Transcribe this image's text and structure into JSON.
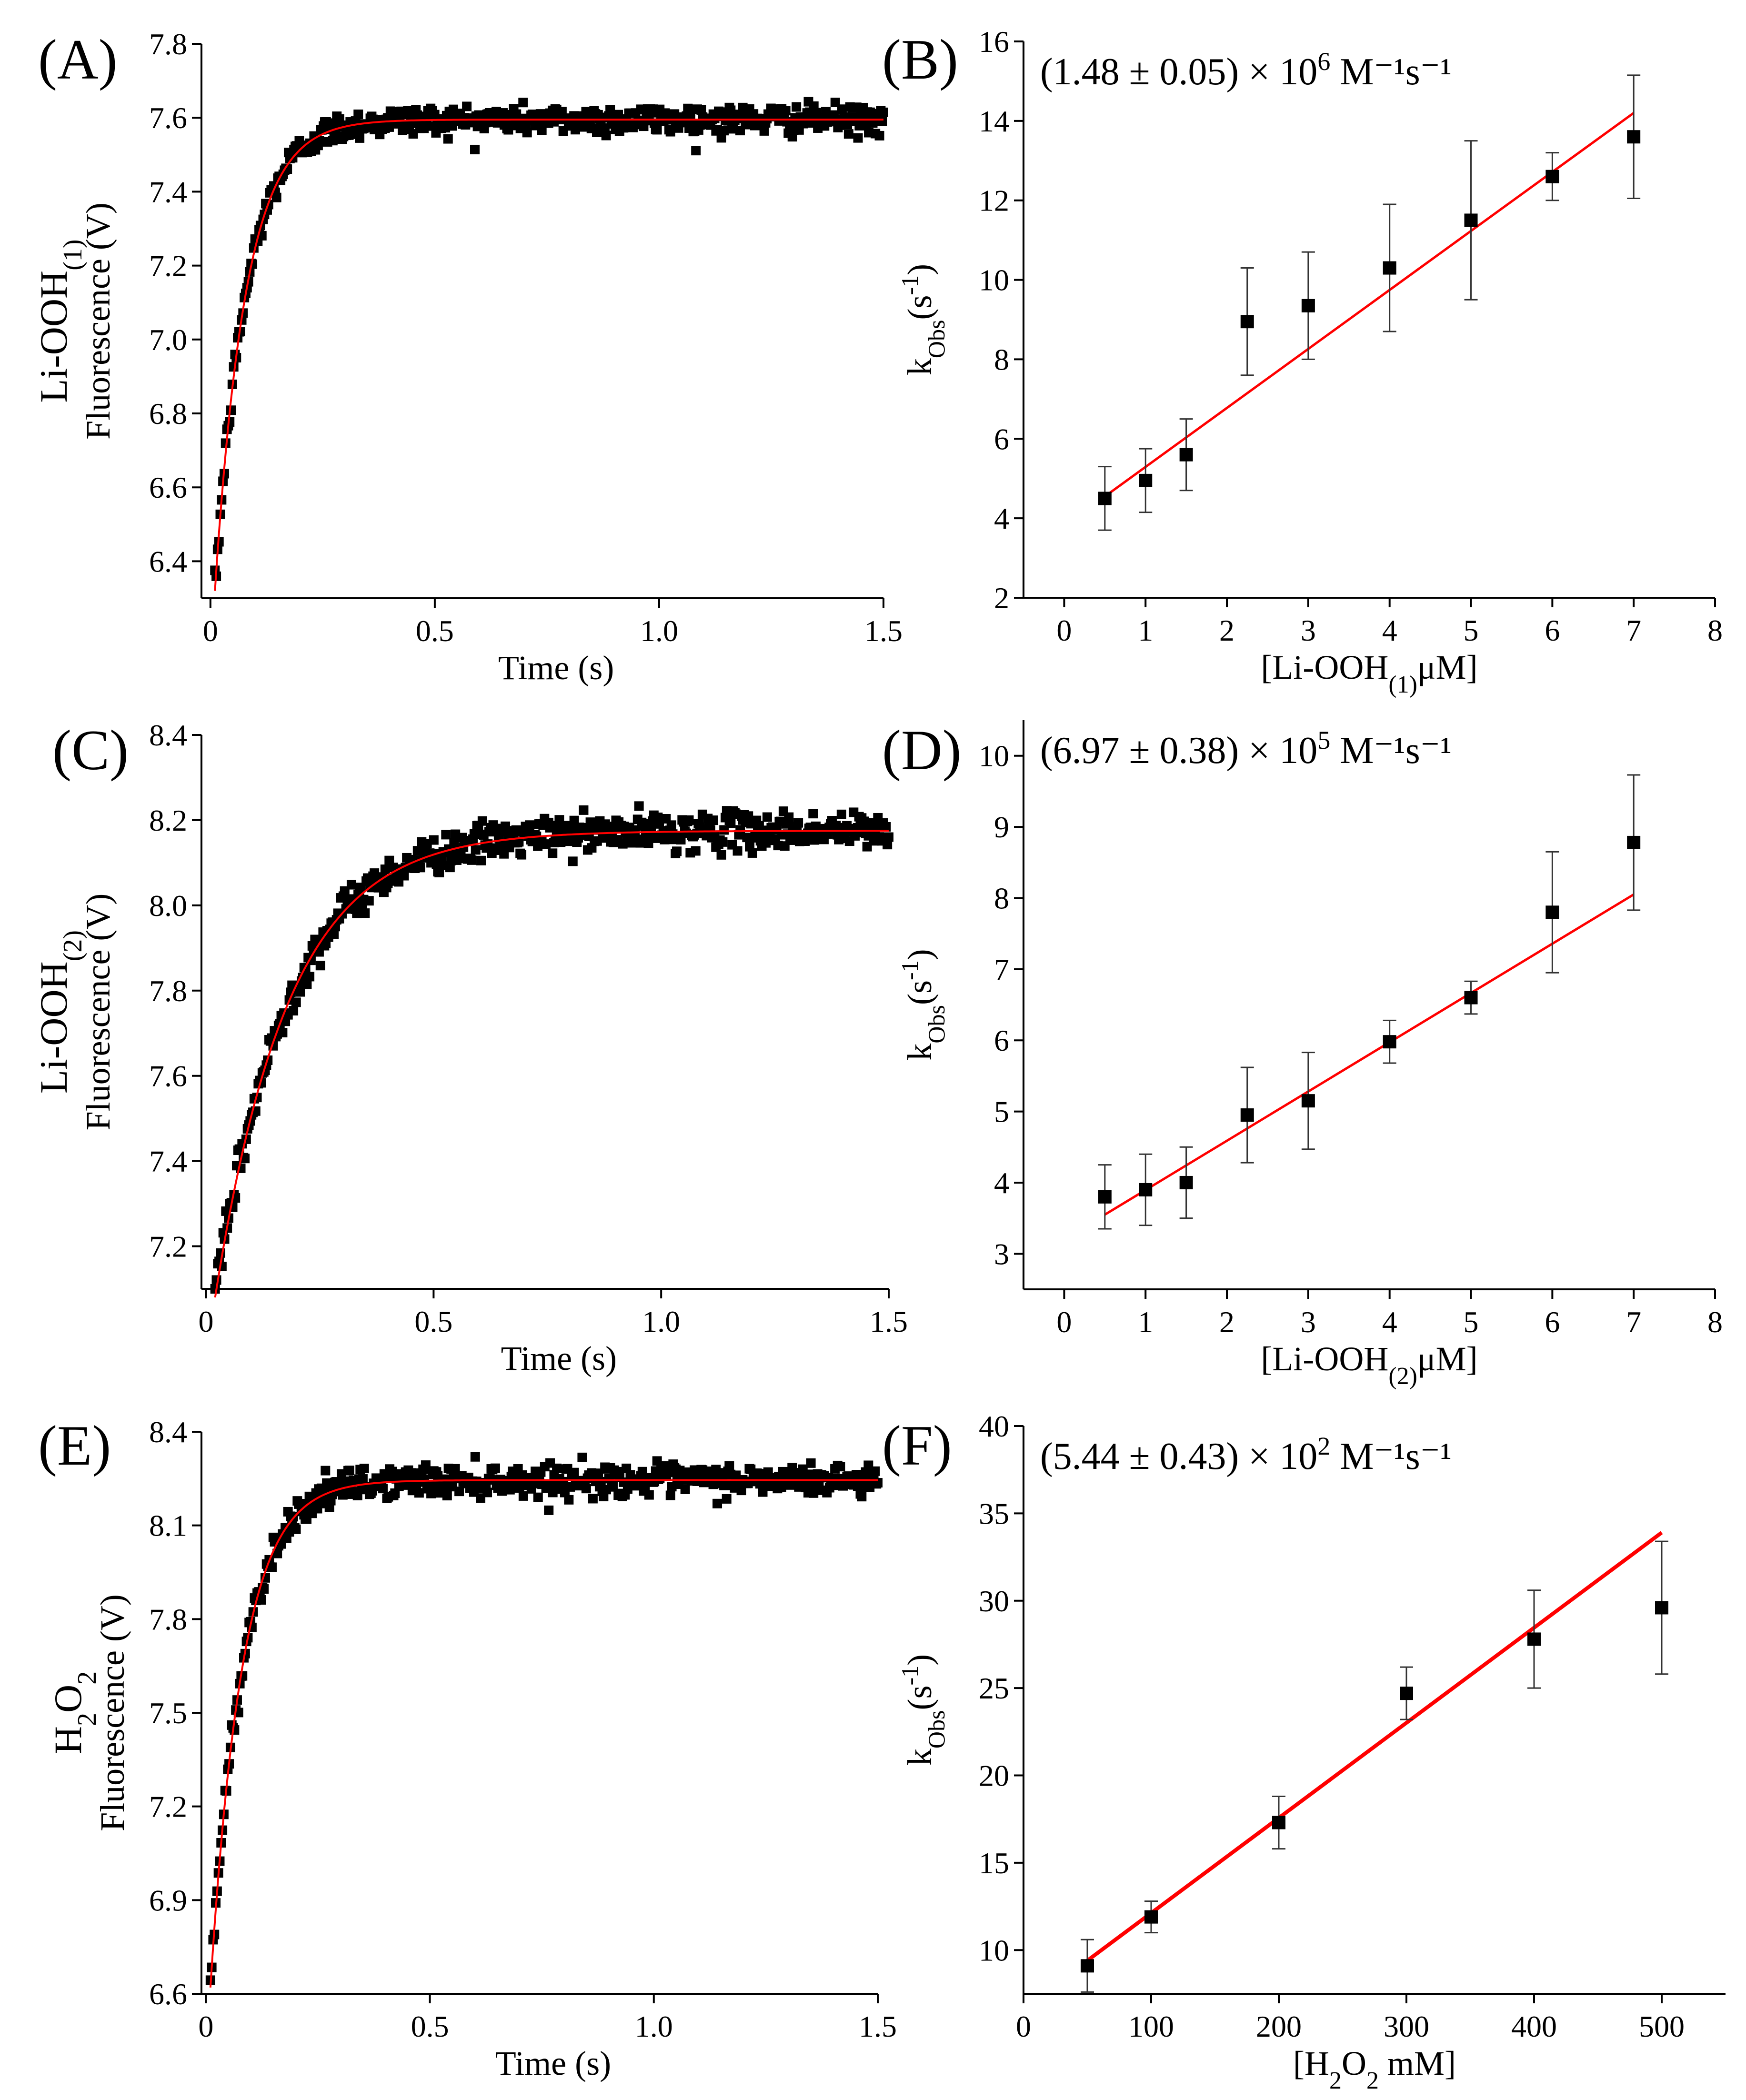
{
  "colors": {
    "fit_line": "#ff0000",
    "markers": "#000000",
    "axes": "#000000",
    "background": "#ffffff"
  },
  "chart_data": [
    {
      "panel": "(A)",
      "type": "scatter",
      "ylabel_main": "Li-OOH",
      "ylabel_sub": "(1)",
      "ylabel_line2": "Fluorescence (V)",
      "xlabel": "Time (s)",
      "xlim": [
        -0.02,
        1.5
      ],
      "ylim": [
        6.3,
        7.8
      ],
      "xticks": [
        0,
        0.5,
        1.0,
        1.5
      ],
      "xtick_labels": [
        "0",
        "0.5",
        "1.0",
        "1.5"
      ],
      "yticks": [
        6.4,
        6.6,
        6.8,
        7.0,
        7.2,
        7.4,
        7.6,
        7.8
      ],
      "ytick_labels": [
        "6.4",
        "6.6",
        "6.8",
        "7.0",
        "7.2",
        "7.4",
        "7.6",
        "7.8"
      ],
      "fit": {
        "model": "single exponential rise",
        "y0": 6.32,
        "plateau": 7.595,
        "k": 14.5,
        "t0": 0.01
      },
      "series": [
        {
          "type": "scatter",
          "marker": "square",
          "points_approx": 500,
          "noise_sd": 0.02
        },
        {
          "type": "line",
          "color": "#ff0000"
        }
      ],
      "grid": false
    },
    {
      "panel": "(B)",
      "type": "scatter",
      "annotation_text": "(1.48 ± 0.05) × 10",
      "annotation_exp": "6",
      "annotation_unit": " M⁻¹s⁻¹",
      "ylabel_main": "k",
      "ylabel_sub": "Obs",
      "ylabel_rest": "(s",
      "ylabel_sup": "-1",
      "ylabel_end": ")",
      "xlabel_pre": "[Li-OOH",
      "xlabel_sub": "(1)",
      "xlabel_post": "μM]",
      "xlim": [
        -0.5,
        8
      ],
      "ylim": [
        2,
        16
      ],
      "xticks": [
        0,
        1,
        2,
        3,
        4,
        5,
        6,
        7,
        8
      ],
      "xtick_labels": [
        "0",
        "1",
        "2",
        "3",
        "4",
        "5",
        "6",
        "7",
        "8"
      ],
      "yticks": [
        2,
        4,
        6,
        8,
        10,
        12,
        14,
        16
      ],
      "ytick_labels": [
        "2",
        "4",
        "6",
        "8",
        "10",
        "12",
        "14",
        "16"
      ],
      "x": [
        0.5,
        1,
        1.5,
        2.25,
        3,
        4,
        5,
        6,
        7
      ],
      "y": [
        4.5,
        4.95,
        5.6,
        8.95,
        9.35,
        10.3,
        11.5,
        12.6,
        13.6
      ],
      "yerr": [
        0.8,
        0.8,
        0.9,
        1.35,
        1.35,
        1.6,
        2.0,
        0.6,
        1.55
      ],
      "fit_line": {
        "x": [
          0.5,
          7
        ],
        "y": [
          4.55,
          14.2
        ]
      },
      "grid": false
    },
    {
      "panel": "(C)",
      "type": "scatter",
      "ylabel_main": "Li-OOH",
      "ylabel_sub": "(2)",
      "ylabel_line2": "Fluorescence (V)",
      "xlabel": "Time (s)",
      "xlim": [
        -0.01,
        1.5
      ],
      "ylim": [
        7.1,
        8.4
      ],
      "xticks": [
        0,
        0.5,
        1.0,
        1.5
      ],
      "xtick_labels": [
        "0",
        "0.5",
        "1.0",
        "1.5"
      ],
      "yticks": [
        7.2,
        7.4,
        7.6,
        7.8,
        8.0,
        8.2,
        8.4
      ],
      "ytick_labels": [
        "7.2",
        "7.4",
        "7.6",
        "7.8",
        "8.0",
        "8.2",
        "8.4"
      ],
      "fit": {
        "model": "single exponential rise",
        "y0": 7.08,
        "plateau": 8.175,
        "k": 6.2,
        "t0": 0.02
      },
      "series": [
        {
          "type": "scatter",
          "marker": "square",
          "points_approx": 500,
          "noise_sd": 0.022
        },
        {
          "type": "line",
          "color": "#ff0000"
        }
      ],
      "grid": false
    },
    {
      "panel": "(D)",
      "type": "scatter",
      "annotation_text": "(6.97 ± 0.38) × 10",
      "annotation_exp": "5",
      "annotation_unit": " M⁻¹s⁻¹",
      "ylabel_main": "k",
      "ylabel_sub": "Obs",
      "ylabel_rest": "(s",
      "ylabel_sup": "-1",
      "ylabel_end": ")",
      "xlabel_pre": "[Li-OOH",
      "xlabel_sub": "(2)",
      "xlabel_post": "μM]",
      "xlim": [
        -0.5,
        8
      ],
      "ylim": [
        2.5,
        10.5
      ],
      "xticks": [
        0,
        1,
        2,
        3,
        4,
        5,
        6,
        7,
        8
      ],
      "xtick_labels": [
        "0",
        "1",
        "2",
        "3",
        "4",
        "5",
        "6",
        "7",
        "8"
      ],
      "yticks": [
        3,
        4,
        5,
        6,
        7,
        8,
        9,
        10
      ],
      "ytick_labels": [
        "3",
        "4",
        "5",
        "6",
        "7",
        "8",
        "9",
        "10"
      ],
      "x": [
        0.5,
        1,
        1.5,
        2.25,
        3,
        4,
        5,
        6,
        7
      ],
      "y": [
        3.8,
        3.9,
        4.0,
        4.95,
        5.15,
        5.98,
        6.6,
        7.8,
        8.78
      ],
      "yerr": [
        0.45,
        0.5,
        0.5,
        0.67,
        0.68,
        0.3,
        0.23,
        0.85,
        0.95
      ],
      "fit_line": {
        "x": [
          0.5,
          7
        ],
        "y": [
          3.55,
          8.05
        ]
      },
      "grid": false
    },
    {
      "panel": "(E)",
      "type": "scatter",
      "ylabel_main": "H",
      "ylabel_sub": "2",
      "ylabel_main2": "O",
      "ylabel_sub2": "2",
      "ylabel_line2": "Fluorescence (V)",
      "xlabel": "Time (s)",
      "xlim": [
        -0.01,
        1.5
      ],
      "ylim": [
        6.6,
        8.4
      ],
      "xticks": [
        0,
        0.5,
        1.0,
        1.5
      ],
      "xtick_labels": [
        "0",
        "0.5",
        "1.0",
        "1.5"
      ],
      "yticks": [
        6.6,
        6.9,
        7.2,
        7.5,
        7.8,
        8.1,
        8.4
      ],
      "ytick_labels": [
        "6.6",
        "6.9",
        "7.2",
        "7.5",
        "7.8",
        "8.1",
        "8.4"
      ],
      "fit": {
        "model": "single exponential rise",
        "y0": 6.62,
        "plateau": 8.245,
        "k": 14.0,
        "t0": 0.01
      },
      "series": [
        {
          "type": "scatter",
          "marker": "square",
          "points_approx": 500,
          "noise_sd": 0.025
        },
        {
          "type": "line",
          "color": "#ff0000"
        }
      ],
      "grid": false
    },
    {
      "panel": "(F)",
      "type": "scatter",
      "annotation_text": "(5.44 ± 0.43) × 10",
      "annotation_exp": "2",
      "annotation_unit": " M⁻¹s⁻¹",
      "ylabel_main": "k",
      "ylabel_sub": "Obs",
      "ylabel_rest": "(s",
      "ylabel_sup": "-1",
      "ylabel_end": ")",
      "xlabel_pre": "[H",
      "xlabel_sub": "2",
      "xlabel_mid": "O",
      "xlabel_sub2": "2",
      "xlabel_post": " mM]",
      "xlim": [
        0,
        550
      ],
      "ylim": [
        7.5,
        40
      ],
      "xticks": [
        0,
        100,
        200,
        300,
        400,
        500
      ],
      "xtick_labels": [
        "0",
        "100",
        "200",
        "300",
        "400",
        "500"
      ],
      "yticks": [
        10,
        15,
        20,
        25,
        30,
        35,
        40
      ],
      "ytick_labels": [
        "10",
        "15",
        "20",
        "25",
        "30",
        "35",
        "40"
      ],
      "x": [
        50,
        100,
        200,
        300,
        400,
        500
      ],
      "y": [
        9.1,
        11.9,
        17.3,
        24.7,
        27.8,
        29.6
      ],
      "yerr": [
        1.5,
        0.9,
        1.5,
        1.5,
        2.8,
        3.8
      ],
      "fit_line": {
        "x": [
          50,
          500
        ],
        "y": [
          9.4,
          33.9
        ]
      },
      "grid": false
    }
  ]
}
